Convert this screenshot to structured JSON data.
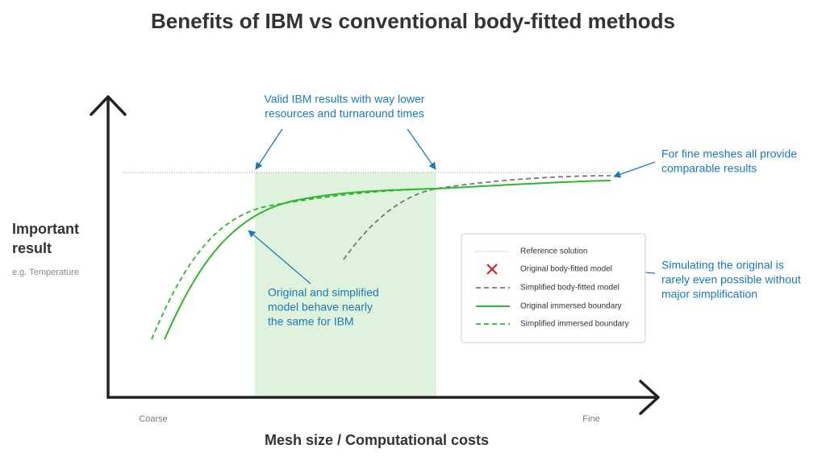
{
  "title": "Benefits of IBM vs conventional body-fitted methods",
  "y_axis": {
    "label_lines": [
      "Important",
      "result"
    ],
    "sublabel": "e.g. Temperature"
  },
  "x_axis": {
    "label": "Mesh size / Computational costs",
    "start": "Coarse",
    "end": "Fine"
  },
  "annotations": {
    "valid_ibm": [
      "Valid IBM results with way lower",
      "resources and turnaround times"
    ],
    "fine_meshes": [
      "For fine meshes all provide",
      "comparable results"
    ],
    "simulating_original": [
      "Simulating the original is",
      "rarely even possible without",
      "major simplification"
    ],
    "ibm_same": [
      "Original and simplified",
      "model behave nearly",
      "the same for IBM"
    ]
  },
  "legend": [
    "Reference solution",
    "Original body-fitted model",
    "Simplified body-fitted model",
    "Original immersed boundary",
    "Simplified immersed boundary"
  ]
}
